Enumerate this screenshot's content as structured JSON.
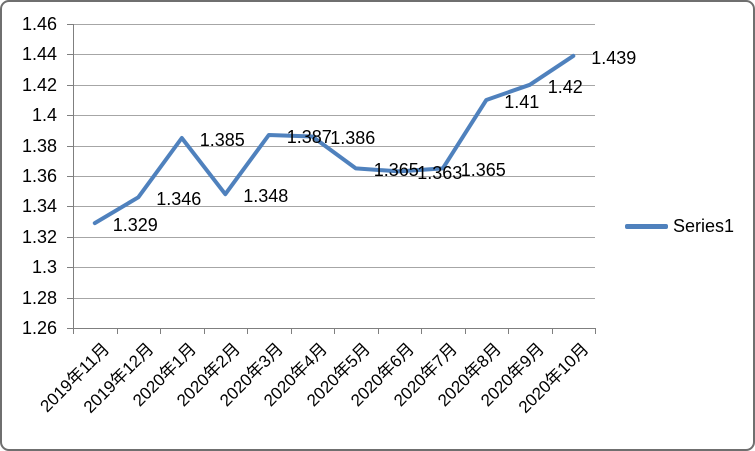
{
  "chart_data": {
    "type": "line",
    "title": "",
    "xlabel": "",
    "ylabel": "",
    "categories": [
      "2019年11月",
      "2019年12月",
      "2020年1月",
      "2020年2月",
      "2020年3月",
      "2020年4月",
      "2020年5月",
      "2020年6月",
      "2020年7月",
      "2020年8月",
      "2020年9月",
      "2020年10月"
    ],
    "series": [
      {
        "name": "Series1",
        "values": [
          1.329,
          1.346,
          1.385,
          1.348,
          1.387,
          1.386,
          1.365,
          1.363,
          1.365,
          1.41,
          1.42,
          1.439
        ]
      }
    ],
    "data_labels": [
      "1.329",
      "1.346",
      "1.385",
      "1.348",
      "1.387",
      "1.386",
      "1.365",
      "1.363",
      "1.365",
      "1.41",
      "1.42",
      "1.439"
    ],
    "y_axis": {
      "min": 1.26,
      "max": 1.46,
      "step": 0.02,
      "tick_labels": [
        "1.46",
        "1.44",
        "1.42",
        "1.4",
        "1.38",
        "1.36",
        "1.34",
        "1.32",
        "1.3",
        "1.28",
        "1.26"
      ]
    },
    "grid": true,
    "legend": {
      "position": "middle-right",
      "entries": [
        "Series1"
      ]
    }
  },
  "colors": {
    "series": "#4f81bd",
    "gridline": "#a6a6a6",
    "axis": "#7f7f7f",
    "text": "#000000",
    "frame_border": "#6f6f6f",
    "background": "#ffffff"
  }
}
